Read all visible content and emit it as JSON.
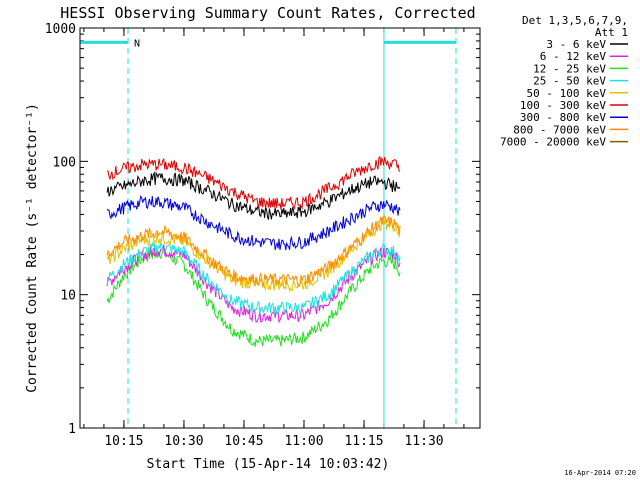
{
  "chart_data": {
    "type": "line",
    "title": "HESSI Observing Summary Count Rates, Corrected",
    "xlabel": "Start Time (15-Apr-14 10:03:42)",
    "ylabel": "Corrected Count Rate (s⁻¹ detector⁻¹)",
    "yscale": "log",
    "ylim": [
      1,
      1000
    ],
    "xlim_minutes": [
      10.067,
      11.733
    ],
    "x_ticks": [
      "10:15",
      "10:30",
      "10:45",
      "11:00",
      "11:15",
      "11:30"
    ],
    "x_tick_minutes": [
      10.25,
      10.5,
      10.75,
      11.0,
      11.25,
      11.5
    ],
    "y_ticks": [
      "1",
      "10",
      "100",
      "1000"
    ],
    "legend_header": [
      "Det 1,3,5,6,7,9,",
      "Att 1"
    ],
    "legend_position": "right",
    "series": [
      {
        "name": "3 - 6 keV",
        "color": "#000000",
        "x": [
          10.18,
          10.25,
          10.33,
          10.4,
          10.5,
          10.6,
          10.7,
          10.8,
          10.9,
          11.0,
          11.1,
          11.2,
          11.28,
          11.33,
          11.38,
          11.4
        ],
        "values": [
          60,
          65,
          72,
          75,
          72,
          60,
          48,
          42,
          40,
          42,
          50,
          62,
          70,
          70,
          65,
          60
        ]
      },
      {
        "name": "6 - 12 keV",
        "color": "#e020e0",
        "x": [
          10.18,
          10.25,
          10.33,
          10.4,
          10.5,
          10.6,
          10.7,
          10.8,
          10.9,
          11.0,
          11.1,
          11.2,
          11.28,
          11.33,
          11.38,
          11.4
        ],
        "values": [
          12,
          16,
          20,
          22,
          20,
          12,
          8,
          7,
          7,
          7,
          9,
          14,
          19,
          21,
          20,
          17
        ]
      },
      {
        "name": "12 - 25 keV",
        "color": "#20e020",
        "x": [
          10.18,
          10.25,
          10.33,
          10.4,
          10.5,
          10.6,
          10.7,
          10.8,
          10.9,
          11.0,
          11.1,
          11.2,
          11.28,
          11.33,
          11.38,
          11.4
        ],
        "values": [
          9,
          14,
          19,
          21,
          17,
          9,
          5.5,
          4.5,
          4.5,
          4.8,
          6.5,
          11,
          16,
          18,
          17,
          15
        ]
      },
      {
        "name": "25 - 50 keV",
        "color": "#20e0e0",
        "x": [
          10.18,
          10.25,
          10.33,
          10.4,
          10.5,
          10.6,
          10.7,
          10.8,
          10.9,
          11.0,
          11.1,
          11.2,
          11.28,
          11.33,
          11.38,
          11.4
        ],
        "values": [
          13,
          17,
          21,
          23,
          21,
          13,
          9,
          8,
          8,
          8,
          10,
          15,
          20,
          22,
          21,
          18
        ]
      },
      {
        "name": "50 - 100 keV",
        "color": "#e0c000",
        "x": [
          10.18,
          10.25,
          10.33,
          10.4,
          10.5,
          10.6,
          10.7,
          10.8,
          10.9,
          11.0,
          11.1,
          11.2,
          11.28,
          11.33,
          11.38,
          11.4
        ],
        "values": [
          18,
          22,
          26,
          27,
          25,
          18,
          13,
          12,
          12,
          12,
          15,
          22,
          30,
          35,
          33,
          28
        ]
      },
      {
        "name": "100 - 300 keV",
        "color": "#e00000",
        "x": [
          10.18,
          10.25,
          10.33,
          10.4,
          10.5,
          10.6,
          10.7,
          10.8,
          10.9,
          11.0,
          11.1,
          11.2,
          11.28,
          11.33,
          11.38,
          11.4
        ],
        "values": [
          80,
          88,
          95,
          95,
          90,
          75,
          60,
          50,
          48,
          50,
          62,
          80,
          95,
          100,
          95,
          85
        ]
      },
      {
        "name": "300 - 800 keV",
        "color": "#0000e0",
        "x": [
          10.18,
          10.25,
          10.33,
          10.4,
          10.5,
          10.6,
          10.7,
          10.8,
          10.9,
          11.0,
          11.1,
          11.2,
          11.28,
          11.33,
          11.38,
          11.4
        ],
        "values": [
          40,
          45,
          50,
          50,
          45,
          35,
          28,
          25,
          24,
          25,
          30,
          38,
          45,
          48,
          45,
          40
        ]
      },
      {
        "name": "800 - 7000 keV",
        "color": "#ff8c00",
        "x": [
          10.18,
          10.25,
          10.33,
          10.4,
          10.5,
          10.6,
          10.7,
          10.8,
          10.9,
          11.0,
          11.1,
          11.2,
          11.28,
          11.33,
          11.38,
          11.4
        ],
        "values": [
          20,
          25,
          28,
          30,
          27,
          19,
          14,
          13,
          13,
          13,
          16,
          23,
          31,
          36,
          34,
          30
        ]
      },
      {
        "name": "7000 - 20000 keV",
        "color": "#806000",
        "x": [],
        "values": []
      }
    ],
    "annotations": {
      "flag_label": "N",
      "flag_color": "#20e0e0",
      "night_spans_minutes": [
        [
          10.067,
          10.267
        ],
        [
          11.333,
          11.633
        ]
      ],
      "dashed_markers_minutes": [
        10.267,
        11.633
      ],
      "solid_markers_minutes": [
        10.067,
        11.333
      ],
      "flag_level": 780
    }
  },
  "footer": {
    "timestamp": "16-Apr-2014 07:20"
  }
}
